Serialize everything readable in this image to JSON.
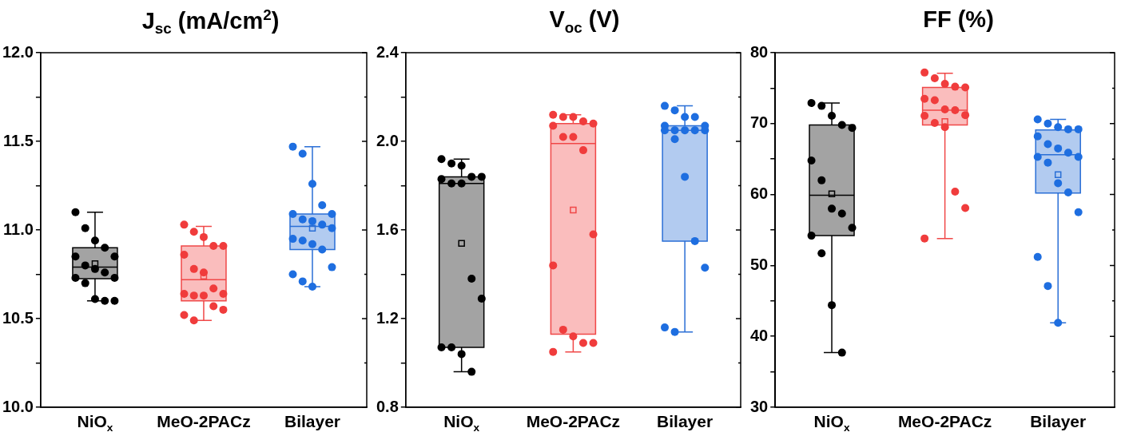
{
  "chart_data": [
    {
      "type": "box",
      "title": "J$_{sc}$ (mA/cm$^{2}$)",
      "categories": [
        "NiO$_{x}$",
        "MeO-2PACz",
        "Bilayer"
      ],
      "ylim": [
        10,
        12
      ],
      "yticks": [
        {
          "value": 10,
          "label": "10.0"
        },
        {
          "value": 10.25,
          "label": null
        },
        {
          "value": 10.5,
          "label": "10.5"
        },
        {
          "value": 10.75,
          "label": null
        },
        {
          "value": 11,
          "label": "11.0"
        },
        {
          "value": 11.25,
          "label": null
        },
        {
          "value": 11.5,
          "label": "11.5"
        },
        {
          "value": 11.75,
          "label": null
        },
        {
          "value": 12,
          "label": "12.0"
        }
      ],
      "grid": false,
      "legend": false,
      "marker": "circle",
      "series": [
        {
          "type": "box",
          "colors": [
            "#000000",
            "#f04848",
            "#2a6fd6"
          ],
          "boxes": [
            {
              "low": 10.6,
              "q1": 10.725,
              "median": 10.79,
              "q3": 10.9,
              "high": 11.1,
              "mean": 10.81
            },
            {
              "low": 10.49,
              "q1": 10.6,
              "median": 10.72,
              "q3": 10.91,
              "high": 11.02,
              "mean": 10.74
            },
            {
              "low": 10.68,
              "q1": 10.89,
              "median": 11.02,
              "q3": 11.09,
              "high": 11.47,
              "mean": 11.01
            }
          ]
        },
        {
          "type": "scatter",
          "color": "#000000",
          "x": [
            "NiO$_{x}$",
            "NiO$_{x}$",
            "NiO$_{x}$",
            "NiO$_{x}$",
            "NiO$_{x}$",
            "NiO$_{x}$",
            "NiO$_{x}$",
            "NiO$_{x}$",
            "NiO$_{x}$",
            "NiO$_{x}$",
            "NiO$_{x}$",
            "NiO$_{x}$",
            "NiO$_{x}$",
            "NiO$_{x}$",
            "NiO$_{x}$"
          ],
          "values": [
            11.1,
            11.01,
            10.94,
            10.9,
            10.85,
            10.85,
            10.8,
            10.78,
            10.76,
            10.73,
            10.73,
            10.7,
            10.61,
            10.6,
            10.6
          ]
        },
        {
          "type": "scatter",
          "color": "#f03c3c",
          "x": [
            "MeO-2PACz",
            "MeO-2PACz",
            "MeO-2PACz",
            "MeO-2PACz",
            "MeO-2PACz",
            "MeO-2PACz",
            "MeO-2PACz",
            "MeO-2PACz",
            "MeO-2PACz",
            "MeO-2PACz",
            "MeO-2PACz",
            "MeO-2PACz",
            "MeO-2PACz",
            "MeO-2PACz",
            "MeO-2PACz",
            "MeO-2PACz",
            "MeO-2PACz"
          ],
          "values": [
            11.03,
            10.99,
            10.96,
            10.91,
            10.91,
            10.86,
            10.78,
            10.76,
            10.67,
            10.64,
            10.64,
            10.63,
            10.63,
            10.57,
            10.55,
            10.52,
            10.49
          ]
        },
        {
          "type": "scatter",
          "color": "#1e6ee0",
          "x": [
            "Bilayer",
            "Bilayer",
            "Bilayer",
            "Bilayer",
            "Bilayer",
            "Bilayer",
            "Bilayer",
            "Bilayer",
            "Bilayer",
            "Bilayer",
            "Bilayer",
            "Bilayer",
            "Bilayer",
            "Bilayer",
            "Bilayer",
            "Bilayer",
            "Bilayer",
            "Bilayer"
          ],
          "values": [
            11.47,
            11.43,
            11.26,
            11.14,
            11.09,
            11.09,
            11.06,
            11.05,
            11.03,
            11.01,
            10.95,
            10.94,
            10.92,
            10.89,
            10.79,
            10.75,
            10.71,
            10.68
          ]
        }
      ]
    },
    {
      "type": "box",
      "title": "V$_{oc}$ (V)",
      "categories": [
        "NiO$_{x}$",
        "MeO-2PACz",
        "Bilayer"
      ],
      "ylim": [
        0.8,
        2.4
      ],
      "yticks": [
        0.8,
        {
          "value": 1.0,
          "label": null
        },
        1.2,
        {
          "value": 1.4,
          "label": null
        },
        1.6,
        {
          "value": 1.8,
          "label": null
        },
        {
          "value": 2.0,
          "label": "2.0"
        },
        {
          "value": 2.2,
          "label": null
        },
        2.4
      ],
      "grid": false,
      "legend": false,
      "marker": "circle",
      "series": [
        {
          "type": "box",
          "colors": [
            "#000000",
            "#f04848",
            "#2a6fd6"
          ],
          "boxes": [
            {
              "low": 0.96,
              "q1": 1.07,
              "median": 1.81,
              "q3": 1.84,
              "high": 1.92,
              "mean": 1.54
            },
            {
              "low": 1.05,
              "q1": 1.13,
              "median": 1.99,
              "q3": 2.08,
              "high": 2.12,
              "mean": 1.69
            },
            {
              "low": 1.14,
              "q1": 1.55,
              "median": 2.05,
              "q3": 2.07,
              "high": 2.16
            }
          ]
        },
        {
          "type": "scatter",
          "color": "#000000",
          "x": [
            "NiO$_{x}$",
            "NiO$_{x}$",
            "NiO$_{x}$",
            "NiO$_{x}$",
            "NiO$_{x}$",
            "NiO$_{x}$",
            "NiO$_{x}$",
            "NiO$_{x}$",
            "NiO$_{x}$",
            "NiO$_{x}$",
            "NiO$_{x}$",
            "NiO$_{x}$",
            "NiO$_{x}$",
            "NiO$_{x}$"
          ],
          "values": [
            1.92,
            1.9,
            1.89,
            1.84,
            1.84,
            1.83,
            1.81,
            1.81,
            1.38,
            1.29,
            1.07,
            1.07,
            1.04,
            0.96
          ]
        },
        {
          "type": "scatter",
          "color": "#f03c3c",
          "x": [
            "MeO-2PACz",
            "MeO-2PACz",
            "MeO-2PACz",
            "MeO-2PACz",
            "MeO-2PACz",
            "MeO-2PACz",
            "MeO-2PACz",
            "MeO-2PACz",
            "MeO-2PACz",
            "MeO-2PACz",
            "MeO-2PACz",
            "MeO-2PACz",
            "MeO-2PACz",
            "MeO-2PACz",
            "MeO-2PACz",
            "MeO-2PACz"
          ],
          "values": [
            2.12,
            2.11,
            2.11,
            2.09,
            2.08,
            2.07,
            2.02,
            2.02,
            1.96,
            1.58,
            1.44,
            1.15,
            1.12,
            1.09,
            1.09,
            1.05
          ]
        },
        {
          "type": "scatter",
          "color": "#1e6ee0",
          "x": [
            "Bilayer",
            "Bilayer",
            "Bilayer",
            "Bilayer",
            "Bilayer",
            "Bilayer",
            "Bilayer",
            "Bilayer",
            "Bilayer",
            "Bilayer",
            "Bilayer",
            "Bilayer",
            "Bilayer",
            "Bilayer",
            "Bilayer",
            "Bilayer",
            "Bilayer"
          ],
          "values": [
            2.16,
            2.14,
            2.11,
            2.11,
            2.07,
            2.07,
            2.05,
            2.05,
            2.05,
            2.05,
            2.05,
            2.01,
            1.84,
            1.55,
            1.43,
            1.16,
            1.14
          ]
        }
      ]
    },
    {
      "type": "box",
      "title": "FF (%)",
      "categories": [
        "NiO$_{x}$",
        "MeO-2PACz",
        "Bilayer"
      ],
      "ylim": [
        30,
        80
      ],
      "yticks": [
        30,
        {
          "value": 35,
          "label": null
        },
        40,
        {
          "value": 45,
          "label": null
        },
        50,
        {
          "value": 55,
          "label": null
        },
        60,
        {
          "value": 65,
          "label": null
        },
        70,
        {
          "value": 75,
          "label": null
        },
        80
      ],
      "grid": false,
      "legend": false,
      "marker": "circle",
      "series": [
        {
          "type": "box",
          "colors": [
            "#000000",
            "#f04848",
            "#2a6fd6"
          ],
          "boxes": [
            {
              "low": 37.7,
              "q1": 54.2,
              "median": 59.9,
              "q3": 69.8,
              "high": 72.9,
              "mean": 60.1
            },
            {
              "low": 53.8,
              "q1": 69.8,
              "median": 71.9,
              "q3": 75.1,
              "high": 77.1,
              "mean": 70.3
            },
            {
              "low": 41.9,
              "q1": 60.2,
              "median": 65.6,
              "q3": 69.1,
              "high": 70.6,
              "mean": 62.8
            }
          ]
        },
        {
          "type": "scatter",
          "color": "#000000",
          "x": [
            "NiO$_{x}$",
            "NiO$_{x}$",
            "NiO$_{x}$",
            "NiO$_{x}$",
            "NiO$_{x}$",
            "NiO$_{x}$",
            "NiO$_{x}$",
            "NiO$_{x}$",
            "NiO$_{x}$",
            "NiO$_{x}$",
            "NiO$_{x}$",
            "NiO$_{x}$",
            "NiO$_{x}$",
            "NiO$_{x}$"
          ],
          "values": [
            72.9,
            72.5,
            71.1,
            69.8,
            69.4,
            64.8,
            62.0,
            58.0,
            57.3,
            55.3,
            54.2,
            51.7,
            44.4,
            37.7
          ]
        },
        {
          "type": "scatter",
          "color": "#f03c3c",
          "x": [
            "MeO-2PACz",
            "MeO-2PACz",
            "MeO-2PACz",
            "MeO-2PACz",
            "MeO-2PACz",
            "MeO-2PACz",
            "MeO-2PACz",
            "MeO-2PACz",
            "MeO-2PACz",
            "MeO-2PACz",
            "MeO-2PACz",
            "MeO-2PACz",
            "MeO-2PACz",
            "MeO-2PACz",
            "MeO-2PACz",
            "MeO-2PACz"
          ],
          "values": [
            77.2,
            76.4,
            75.6,
            75.2,
            75.1,
            73.5,
            73.3,
            72.0,
            71.9,
            71.2,
            71.1,
            70.1,
            69.5,
            60.4,
            58.1,
            53.8
          ]
        },
        {
          "type": "scatter",
          "color": "#1e6ee0",
          "x": [
            "Bilayer",
            "Bilayer",
            "Bilayer",
            "Bilayer",
            "Bilayer",
            "Bilayer",
            "Bilayer",
            "Bilayer",
            "Bilayer",
            "Bilayer",
            "Bilayer",
            "Bilayer",
            "Bilayer",
            "Bilayer",
            "Bilayer",
            "Bilayer",
            "Bilayer",
            "Bilayer"
          ],
          "values": [
            70.6,
            70.0,
            69.5,
            69.2,
            69.2,
            68.2,
            67.1,
            66.5,
            65.9,
            65.3,
            65.3,
            64.5,
            61.6,
            60.3,
            57.5,
            51.2,
            47.1,
            41.9
          ]
        }
      ]
    }
  ]
}
